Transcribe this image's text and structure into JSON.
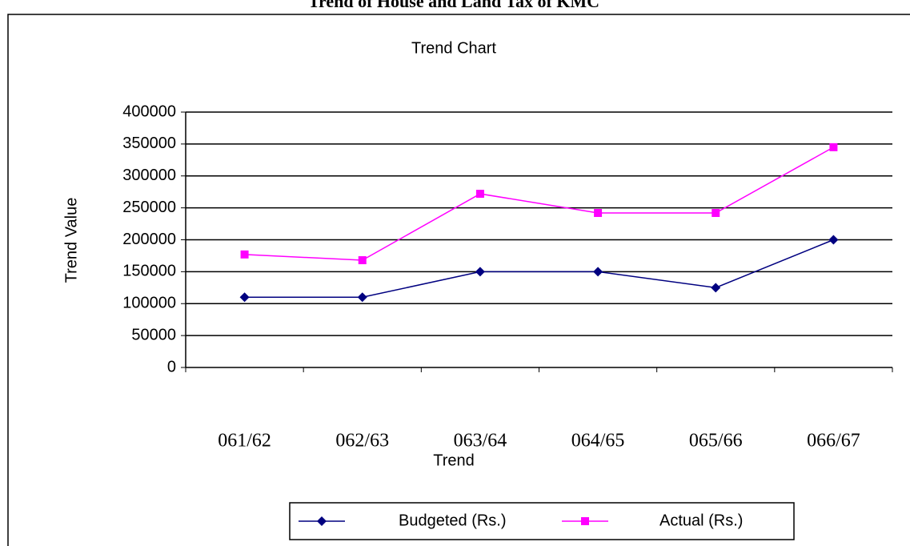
{
  "page_title": "Trend of House and Land Tax of KMC",
  "chart_data": {
    "type": "line",
    "title": "Trend Chart",
    "x_label": "Trend",
    "y_label": "Trend Value",
    "categories": [
      "061/62",
      "062/63",
      "063/64",
      "064/65",
      "065/66",
      "066/67"
    ],
    "series": [
      {
        "name": "Budgeted (Rs.)",
        "color": "#000080",
        "marker": "diamond",
        "values": [
          110000,
          110000,
          150000,
          150000,
          125000,
          200000
        ]
      },
      {
        "name": "Actual (Rs.)",
        "color": "#ff00ff",
        "marker": "square",
        "values": [
          177000,
          168000,
          272000,
          242000,
          242000,
          345000
        ]
      }
    ],
    "ylim": [
      0,
      400000
    ],
    "yticks": [
      0,
      50000,
      100000,
      150000,
      200000,
      250000,
      300000,
      350000,
      400000
    ],
    "grid": true,
    "legend": "bottom"
  }
}
